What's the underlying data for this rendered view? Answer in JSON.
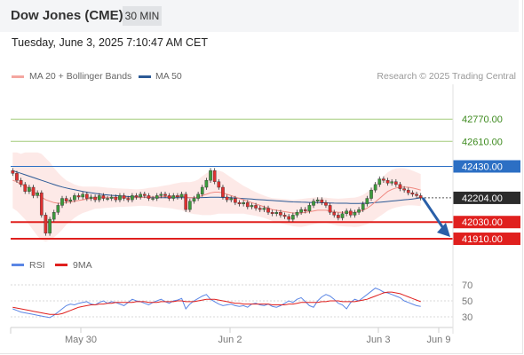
{
  "header": {
    "title": "Dow Jones (CME)",
    "timeframe": "30 MIN"
  },
  "timestamp": "Tuesday, June 3, 2025 7:10:47 AM CET",
  "research": "Research © 2025 Trading Central",
  "legend_main": [
    {
      "label": "MA 20 + Bollinger Bands",
      "color": "#f4a6a0"
    },
    {
      "label": "MA 50",
      "color": "#2c5a96"
    }
  ],
  "legend_rsi": [
    {
      "label": "RSI",
      "color": "#5b86e5"
    },
    {
      "label": "9MA",
      "color": "#e0201e"
    }
  ],
  "colors": {
    "resistance_green": "#a3cc7a",
    "pivot_blue": "#2c6fc4",
    "support_red": "#e0201e",
    "last_price": "#2b2b2b",
    "candle_up": "#3c9a3c",
    "candle_down": "#e03030",
    "arrow": "#2a5fa8"
  },
  "chart_data": [
    {
      "type": "candlestick",
      "x_labels": [
        "May 30",
        "Jun 2",
        "Jun 3",
        "Jun 9"
      ],
      "ylim": [
        41840,
        43020
      ],
      "levels": [
        {
          "value": 42770.0,
          "label": "42770.00",
          "kind": "resistance"
        },
        {
          "value": 42610.0,
          "label": "42610.00",
          "kind": "resistance"
        },
        {
          "value": 42430.0,
          "label": "42430.00",
          "kind": "pivot"
        },
        {
          "value": 42204.0,
          "label": "42204.00",
          "kind": "last"
        },
        {
          "value": 42030.0,
          "label": "42030.00",
          "kind": "support"
        },
        {
          "value": 41910.0,
          "label": "41910.00",
          "kind": "support"
        }
      ],
      "close": [
        42380,
        42330,
        42300,
        42250,
        42280,
        42220,
        42240,
        42080,
        41950,
        42050,
        42100,
        42150,
        42200,
        42180,
        42190,
        42220,
        42210,
        42230,
        42200,
        42210,
        42190,
        42220,
        42200,
        42200,
        42210,
        42190,
        42220,
        42200,
        42190,
        42220,
        42210,
        42230,
        42220,
        42200,
        42200,
        42220,
        42230,
        42220,
        42200,
        42220,
        42210,
        42230,
        42120,
        42180,
        42200,
        42230,
        42280,
        42330,
        42400,
        42320,
        42280,
        42210,
        42190,
        42200,
        42170,
        42160,
        42170,
        42140,
        42150,
        42130,
        42120,
        42130,
        42100,
        42090,
        42100,
        42080,
        42070,
        42050,
        42080,
        42100,
        42120,
        42110,
        42150,
        42180,
        42190,
        42170,
        42150,
        42100,
        42080,
        42060,
        42090,
        42110,
        42080,
        42100,
        42120,
        42160,
        42200,
        42260,
        42300,
        42340,
        42330,
        42310,
        42320,
        42300,
        42270,
        42260,
        42240,
        42230,
        42220,
        42204
      ],
      "open": [
        42400,
        42380,
        42330,
        42300,
        42250,
        42280,
        42220,
        42240,
        42080,
        41950,
        42050,
        42100,
        42150,
        42200,
        42180,
        42190,
        42220,
        42210,
        42230,
        42200,
        42210,
        42190,
        42220,
        42200,
        42200,
        42210,
        42190,
        42220,
        42200,
        42190,
        42220,
        42210,
        42230,
        42220,
        42200,
        42200,
        42220,
        42230,
        42220,
        42200,
        42220,
        42210,
        42230,
        42120,
        42180,
        42200,
        42230,
        42280,
        42330,
        42400,
        42320,
        42280,
        42210,
        42190,
        42200,
        42170,
        42160,
        42170,
        42140,
        42150,
        42130,
        42120,
        42130,
        42100,
        42090,
        42100,
        42080,
        42070,
        42050,
        42080,
        42100,
        42120,
        42110,
        42150,
        42180,
        42190,
        42170,
        42150,
        42100,
        42080,
        42060,
        42090,
        42110,
        42080,
        42100,
        42120,
        42160,
        42200,
        42260,
        42300,
        42340,
        42330,
        42310,
        42320,
        42300,
        42270,
        42260,
        42240,
        42230,
        42220
      ],
      "ma20": [
        42330,
        42320,
        42300,
        42290,
        42270,
        42250,
        42230,
        42210,
        42190,
        42180,
        42170,
        42165,
        42165,
        42170,
        42175,
        42180,
        42185,
        42190,
        42195,
        42200,
        42205,
        42205,
        42205,
        42205,
        42205,
        42205,
        42205,
        42205,
        42205,
        42205,
        42205,
        42207,
        42208,
        42210,
        42210,
        42210,
        42212,
        42213,
        42214,
        42215,
        42215,
        42216,
        42210,
        42205,
        42205,
        42210,
        42220,
        42230,
        42240,
        42245,
        42245,
        42240,
        42230,
        42220,
        42210,
        42200,
        42190,
        42180,
        42170,
        42160,
        42150,
        42140,
        42130,
        42120,
        42115,
        42110,
        42105,
        42100,
        42095,
        42095,
        42095,
        42100,
        42105,
        42110,
        42115,
        42115,
        42115,
        42110,
        42105,
        42100,
        42100,
        42100,
        42100,
        42100,
        42105,
        42115,
        42130,
        42150,
        42175,
        42200,
        42225,
        42250,
        42265,
        42275,
        42280,
        42282,
        42280,
        42275,
        42268,
        42260
      ],
      "ma50": [
        42400,
        42390,
        42380,
        42370,
        42360,
        42350,
        42340,
        42330,
        42320,
        42310,
        42300,
        42290,
        42282,
        42275,
        42268,
        42262,
        42256,
        42250,
        42245,
        42240,
        42236,
        42232,
        42228,
        42225,
        42222,
        42220,
        42218,
        42216,
        42214,
        42212,
        42210,
        42209,
        42208,
        42207,
        42206,
        42205,
        42205,
        42205,
        42205,
        42205,
        42205,
        42205,
        42205,
        42205,
        42205,
        42205,
        42206,
        42207,
        42208,
        42208,
        42208,
        42207,
        42206,
        42205,
        42203,
        42201,
        42199,
        42197,
        42195,
        42193,
        42191,
        42189,
        42187,
        42185,
        42183,
        42181,
        42179,
        42177,
        42175,
        42174,
        42173,
        42172,
        42171,
        42170,
        42170,
        42169,
        42168,
        42167,
        42166,
        42165,
        42165,
        42165,
        42164,
        42164,
        42164,
        42165,
        42166,
        42168,
        42170,
        42172,
        42175,
        42178,
        42181,
        42184,
        42187,
        42190,
        42193,
        42196,
        42200,
        42204
      ],
      "bb_width": [
        200,
        210,
        220,
        240,
        260,
        280,
        300,
        310,
        300,
        280,
        250,
        220,
        190,
        160,
        140,
        120,
        105,
        95,
        90,
        85,
        80,
        78,
        75,
        72,
        70,
        68,
        66,
        65,
        64,
        62,
        60,
        60,
        62,
        65,
        68,
        72,
        76,
        80,
        84,
        90,
        95,
        100,
        108,
        112,
        118,
        125,
        140,
        150,
        160,
        160,
        155,
        150,
        140,
        130,
        120,
        110,
        100,
        95,
        90,
        85,
        82,
        80,
        80,
        82,
        85,
        88,
        90,
        92,
        95,
        98,
        100,
        100,
        98,
        96,
        94,
        92,
        90,
        92,
        95,
        98,
        100,
        102,
        104,
        106,
        108,
        110,
        115,
        120,
        125,
        130,
        135,
        138,
        140,
        140,
        138,
        135,
        130,
        125,
        120,
        115
      ],
      "projection": {
        "from": 42204.0,
        "to": 41910.0
      }
    },
    {
      "type": "line",
      "title": "RSI",
      "yticks": [
        70,
        50,
        30
      ],
      "ylim": [
        20,
        80
      ],
      "series": [
        {
          "name": "RSI",
          "values": [
            40,
            38,
            36,
            35,
            34,
            33,
            32,
            31,
            30,
            29,
            32,
            36,
            40,
            44,
            46,
            45,
            47,
            48,
            49,
            46,
            45,
            48,
            50,
            47,
            49,
            48,
            46,
            44,
            48,
            52,
            50,
            49,
            47,
            45,
            48,
            50,
            52,
            49,
            47,
            50,
            51,
            53,
            40,
            46,
            50,
            53,
            56,
            58,
            52,
            49,
            46,
            44,
            45,
            46,
            44,
            43,
            44,
            42,
            46,
            47,
            45,
            44,
            46,
            43,
            42,
            44,
            47,
            50,
            48,
            52,
            54,
            49,
            44,
            42,
            50,
            55,
            58,
            56,
            52,
            47,
            45,
            40,
            48,
            52,
            50,
            54,
            58,
            62,
            66,
            64,
            61,
            60,
            58,
            56,
            54,
            50,
            48,
            46,
            44,
            43
          ]
        },
        {
          "name": "9MA",
          "values": [
            42,
            41,
            40,
            39,
            38,
            37,
            36,
            35,
            34,
            33,
            33,
            33,
            34,
            36,
            38,
            40,
            42,
            43,
            44,
            45,
            45,
            46,
            46,
            47,
            47,
            48,
            48,
            48,
            48,
            48,
            49,
            49,
            49,
            48,
            48,
            48,
            49,
            49,
            49,
            49,
            50,
            50,
            49,
            49,
            49,
            50,
            51,
            52,
            52,
            52,
            51,
            50,
            49,
            48,
            47,
            47,
            46,
            46,
            46,
            46,
            46,
            46,
            46,
            45,
            45,
            45,
            45,
            46,
            46,
            47,
            48,
            48,
            48,
            48,
            48,
            49,
            49,
            50,
            50,
            50,
            49,
            49,
            49,
            49,
            50,
            51,
            52,
            54,
            56,
            58,
            60,
            61,
            61,
            60,
            59,
            57,
            55,
            53,
            51,
            49
          ]
        }
      ]
    }
  ]
}
